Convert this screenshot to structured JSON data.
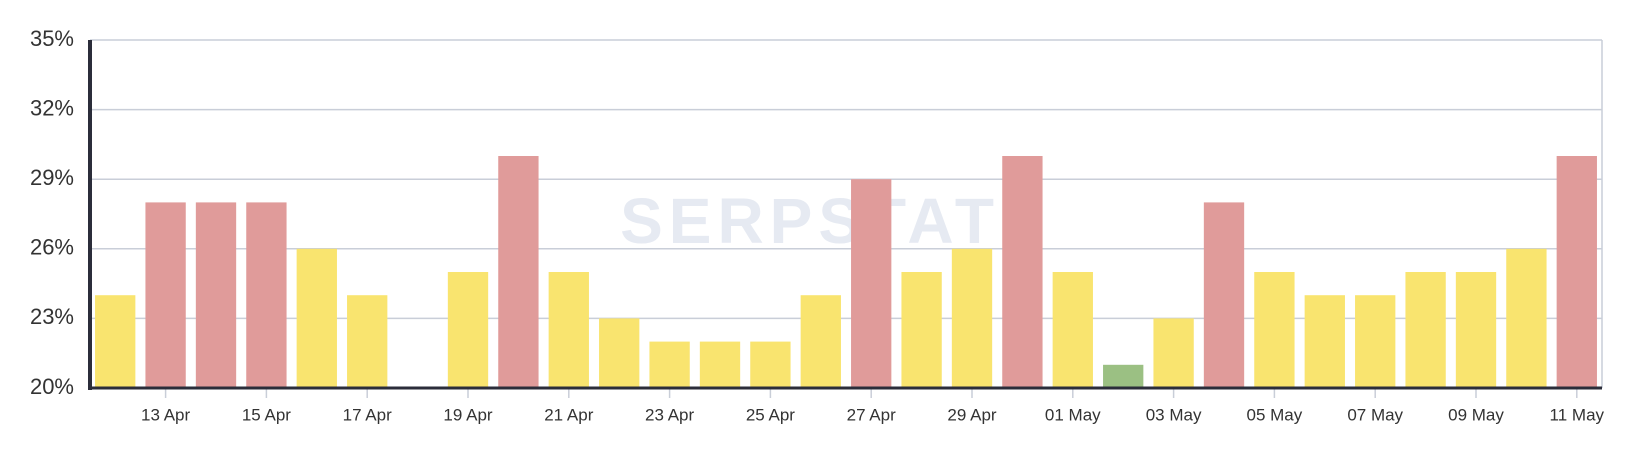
{
  "chart_data": {
    "type": "bar",
    "watermark": "SERPSTAT",
    "categories": [
      null,
      "13 Apr",
      null,
      "15 Apr",
      null,
      "17 Apr",
      null,
      "19 Apr",
      null,
      "21 Apr",
      null,
      "23 Apr",
      null,
      "25 Apr",
      null,
      "27 Apr",
      null,
      "29 Apr",
      null,
      "01 May",
      null,
      "03 May",
      null,
      "05 May",
      null,
      "07 May",
      null,
      "09 May",
      null,
      "11 May"
    ],
    "values": [
      24,
      28,
      28,
      28,
      26,
      24,
      null,
      25,
      30,
      25,
      23,
      22,
      22,
      22,
      24,
      29,
      25,
      26,
      30,
      25,
      21,
      23,
      28,
      25,
      24,
      24,
      25,
      25,
      26,
      30
    ],
    "colors": [
      "#f9e46f",
      "#e09b9a",
      "#e09b9a",
      "#e09b9a",
      "#f9e46f",
      "#f9e46f",
      "#f9e46f",
      "#f9e46f",
      "#e09b9a",
      "#f9e46f",
      "#f9e46f",
      "#f9e46f",
      "#f9e46f",
      "#f9e46f",
      "#f9e46f",
      "#e09b9a",
      "#f9e46f",
      "#f9e46f",
      "#e09b9a",
      "#f9e46f",
      "#9bc083",
      "#f9e46f",
      "#e09b9a",
      "#f9e46f",
      "#f9e46f",
      "#f9e46f",
      "#f9e46f",
      "#f9e46f",
      "#f9e46f",
      "#e09b9a"
    ],
    "ylim": [
      20,
      35
    ],
    "yticks": [
      {
        "value": 20,
        "label": "20%"
      },
      {
        "value": 23,
        "label": "23%"
      },
      {
        "value": 26,
        "label": "26%"
      },
      {
        "value": 29,
        "label": "29%"
      },
      {
        "value": 32,
        "label": "32%"
      },
      {
        "value": 35,
        "label": "35%"
      }
    ],
    "grid": true
  }
}
